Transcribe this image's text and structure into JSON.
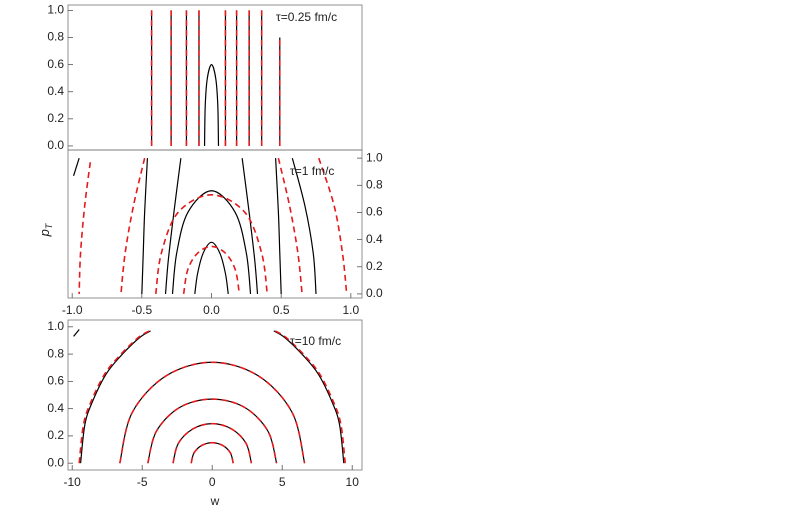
{
  "chart_data": [
    {
      "type": "contour",
      "annotation": "τ=0.25 fm/c",
      "xlim": [
        -1.03,
        1.08
      ],
      "ylim": [
        -0.03,
        1.04
      ],
      "yaxis": "left",
      "yticks": [
        {
          "value": 0,
          "label": "0.0"
        },
        {
          "value": 0.2,
          "label": "0.2"
        },
        {
          "value": 0.4,
          "label": "0.4"
        },
        {
          "value": 0.6,
          "label": "0.6"
        },
        {
          "value": 0.8,
          "label": "0.8"
        },
        {
          "value": 1,
          "label": "1.0"
        }
      ],
      "curves": [
        {
          "color": "#000000",
          "dash": false,
          "x": [
            -0.43,
            -0.43
          ],
          "y": [
            0,
            1
          ]
        },
        {
          "color": "#000000",
          "dash": false,
          "x": [
            -0.29,
            -0.29
          ],
          "y": [
            0,
            1
          ]
        },
        {
          "color": "#000000",
          "dash": false,
          "x": [
            -0.18,
            -0.18
          ],
          "y": [
            0,
            1
          ]
        },
        {
          "color": "#000000",
          "dash": false,
          "x": [
            -0.09,
            -0.09
          ],
          "y": [
            0,
            1
          ]
        },
        {
          "color": "#000000",
          "dash": false,
          "x": [
            -0.05,
            -0.045,
            -0.03,
            0,
            0.03,
            0.045,
            0.05
          ],
          "y": [
            0,
            0.3,
            0.5,
            0.6,
            0.5,
            0.3,
            0
          ]
        },
        {
          "color": "#000000",
          "dash": false,
          "x": [
            0.1,
            0.1
          ],
          "y": [
            0,
            1
          ]
        },
        {
          "color": "#000000",
          "dash": false,
          "x": [
            0.18,
            0.18
          ],
          "y": [
            0,
            1
          ]
        },
        {
          "color": "#000000",
          "dash": false,
          "x": [
            0.27,
            0.27
          ],
          "y": [
            0,
            1
          ]
        },
        {
          "color": "#000000",
          "dash": false,
          "x": [
            0.36,
            0.36
          ],
          "y": [
            0,
            1
          ]
        },
        {
          "color": "#000000",
          "dash": false,
          "x": [
            0.49,
            0.49
          ],
          "y": [
            0,
            0.8
          ]
        },
        {
          "color": "#e41a1c",
          "dash": true,
          "x": [
            -0.43,
            -0.43
          ],
          "y": [
            0,
            1
          ]
        },
        {
          "color": "#e41a1c",
          "dash": true,
          "x": [
            -0.29,
            -0.29
          ],
          "y": [
            0,
            1
          ]
        },
        {
          "color": "#e41a1c",
          "dash": true,
          "x": [
            -0.18,
            -0.18
          ],
          "y": [
            0,
            1
          ]
        },
        {
          "color": "#e41a1c",
          "dash": true,
          "x": [
            -0.09,
            -0.09
          ],
          "y": [
            0,
            1
          ]
        },
        {
          "color": "#e41a1c",
          "dash": true,
          "x": [
            0.1,
            0.1
          ],
          "y": [
            0,
            1
          ]
        },
        {
          "color": "#e41a1c",
          "dash": true,
          "x": [
            0.18,
            0.18
          ],
          "y": [
            0,
            1
          ]
        },
        {
          "color": "#e41a1c",
          "dash": true,
          "x": [
            0.27,
            0.27
          ],
          "y": [
            0,
            1
          ]
        },
        {
          "color": "#e41a1c",
          "dash": true,
          "x": [
            0.36,
            0.36
          ],
          "y": [
            0,
            1
          ]
        },
        {
          "color": "#e41a1c",
          "dash": true,
          "x": [
            0.49,
            0.49
          ],
          "y": [
            0,
            0.8
          ]
        }
      ]
    },
    {
      "type": "contour",
      "annotation": "τ=1 fm/c",
      "xlim": [
        -1.03,
        1.08
      ],
      "ylim": [
        -0.03,
        1.06
      ],
      "yaxis": "right",
      "ylabel": "p",
      "ylabel_subscript": "T",
      "xticks": [
        {
          "value": -1,
          "label": "-1.0"
        },
        {
          "value": -0.5,
          "label": "-0.5"
        },
        {
          "value": 0,
          "label": "0.0"
        },
        {
          "value": 0.5,
          "label": "0.5"
        },
        {
          "value": 1,
          "label": "1.0"
        }
      ],
      "yticks": [
        {
          "value": 0,
          "label": "0.0"
        },
        {
          "value": 0.2,
          "label": "0.2"
        },
        {
          "value": 0.4,
          "label": "0.4"
        },
        {
          "value": 0.6,
          "label": "0.6"
        },
        {
          "value": 0.8,
          "label": "0.8"
        },
        {
          "value": 1,
          "label": "1.0"
        }
      ],
      "curves": [
        {
          "color": "#000000",
          "dash": false,
          "x": [
            -0.12,
            -0.1,
            -0.06,
            0,
            0.06,
            0.1,
            0.12
          ],
          "y": [
            0,
            0.15,
            0.3,
            0.38,
            0.3,
            0.15,
            0
          ]
        },
        {
          "color": "#000000",
          "dash": false,
          "x": [
            -0.28,
            -0.25,
            -0.17,
            0,
            0.17,
            0.25,
            0.28
          ],
          "y": [
            0,
            0.3,
            0.6,
            0.76,
            0.6,
            0.3,
            0
          ]
        },
        {
          "color": "#000000",
          "dash": false,
          "x": [
            -0.22,
            -0.27,
            -0.31,
            -0.33
          ],
          "y": [
            1,
            0.6,
            0.25,
            0
          ]
        },
        {
          "color": "#000000",
          "dash": false,
          "x": [
            0.22,
            0.27,
            0.31,
            0.33
          ],
          "y": [
            1,
            0.6,
            0.25,
            0
          ]
        },
        {
          "color": "#000000",
          "dash": false,
          "x": [
            -0.46,
            -0.48,
            -0.49,
            -0.5
          ],
          "y": [
            1,
            0.6,
            0.3,
            0
          ]
        },
        {
          "color": "#000000",
          "dash": false,
          "x": [
            0.46,
            0.48,
            0.49,
            0.5
          ],
          "y": [
            1,
            0.6,
            0.3,
            0
          ]
        },
        {
          "color": "#000000",
          "dash": false,
          "x": [
            0.58,
            0.67,
            0.73,
            0.75
          ],
          "y": [
            1,
            0.65,
            0.3,
            0
          ]
        },
        {
          "color": "#000000",
          "dash": false,
          "x": [
            -0.99,
            -0.95
          ],
          "y": [
            0.87,
            1
          ]
        },
        {
          "color": "#e41a1c",
          "dash": true,
          "x": [
            -0.2,
            -0.17,
            -0.1,
            0,
            0.1,
            0.17,
            0.2
          ],
          "y": [
            0,
            0.18,
            0.3,
            0.35,
            0.3,
            0.18,
            0
          ]
        },
        {
          "color": "#e41a1c",
          "dash": true,
          "x": [
            -0.4,
            -0.36,
            -0.24,
            0,
            0.24,
            0.36,
            0.4
          ],
          "y": [
            0,
            0.3,
            0.6,
            0.73,
            0.6,
            0.3,
            0
          ]
        },
        {
          "color": "#e41a1c",
          "dash": true,
          "x": [
            -0.48,
            -0.56,
            -0.62,
            -0.65
          ],
          "y": [
            1,
            0.65,
            0.3,
            0
          ]
        },
        {
          "color": "#e41a1c",
          "dash": true,
          "x": [
            0.48,
            0.56,
            0.62,
            0.65
          ],
          "y": [
            1,
            0.65,
            0.3,
            0
          ]
        },
        {
          "color": "#e41a1c",
          "dash": true,
          "x": [
            -0.87,
            -0.91,
            -0.94,
            -0.95
          ],
          "y": [
            0.97,
            0.65,
            0.3,
            0
          ]
        },
        {
          "color": "#e41a1c",
          "dash": true,
          "x": [
            0.77,
            0.88,
            0.94,
            0.97
          ],
          "y": [
            1,
            0.65,
            0.3,
            0
          ]
        }
      ]
    },
    {
      "type": "contour",
      "annotation": "τ=10 fm/c",
      "xlim": [
        -10.3,
        10.7
      ],
      "ylim": [
        -0.05,
        1.05
      ],
      "yaxis": "left",
      "xlabel": "w",
      "xticks": [
        -10,
        -5,
        0,
        5,
        10
      ],
      "yticks": [
        {
          "value": 0,
          "label": "0.0"
        },
        {
          "value": 0.2,
          "label": "0.2"
        },
        {
          "value": 0.4,
          "label": "0.4"
        },
        {
          "value": 0.6,
          "label": "0.6"
        },
        {
          "value": 0.8,
          "label": "0.8"
        },
        {
          "value": 1,
          "label": "1.0"
        }
      ],
      "curves": [
        {
          "color": "#000000",
          "dash": false,
          "x": [
            -1.5,
            -1.3,
            -0.75,
            0,
            0.75,
            1.3,
            1.5
          ],
          "y": [
            0,
            0.075,
            0.13,
            0.15,
            0.13,
            0.075,
            0
          ]
        },
        {
          "color": "#000000",
          "dash": false,
          "x": [
            -2.8,
            -2.42,
            -1.4,
            0,
            1.4,
            2.42,
            2.8
          ],
          "y": [
            0,
            0.145,
            0.25,
            0.29,
            0.25,
            0.145,
            0
          ]
        },
        {
          "color": "#000000",
          "dash": false,
          "x": [
            -4.6,
            -3.98,
            -2.3,
            0,
            2.3,
            3.98,
            4.6
          ],
          "y": [
            0,
            0.235,
            0.41,
            0.47,
            0.41,
            0.235,
            0
          ]
        },
        {
          "color": "#000000",
          "dash": false,
          "x": [
            -6.6,
            -5.72,
            -3.3,
            0,
            3.3,
            5.72,
            6.6
          ],
          "y": [
            0,
            0.37,
            0.64,
            0.74,
            0.64,
            0.37,
            0
          ]
        },
        {
          "color": "#000000",
          "dash": false,
          "x": [
            -9.4,
            -9.1,
            -8.6,
            -7.6,
            -6.5,
            -5.2,
            -4.4
          ],
          "y": [
            0,
            0.28,
            0.44,
            0.65,
            0.79,
            0.92,
            0.97
          ]
        },
        {
          "color": "#000000",
          "dash": false,
          "x": [
            9.4,
            9.1,
            8.6,
            7.6,
            6.5,
            5.2,
            4.4
          ],
          "y": [
            0,
            0.28,
            0.44,
            0.65,
            0.79,
            0.92,
            0.97
          ]
        },
        {
          "color": "#000000",
          "dash": false,
          "x": [
            -9.9,
            -9.5
          ],
          "y": [
            0.93,
            0.98
          ]
        },
        {
          "color": "#e41a1c",
          "dash": true,
          "x": [
            -1.5,
            -1.3,
            -0.75,
            0,
            0.75,
            1.3,
            1.5
          ],
          "y": [
            0,
            0.075,
            0.13,
            0.15,
            0.13,
            0.075,
            0
          ]
        },
        {
          "color": "#e41a1c",
          "dash": true,
          "x": [
            -2.8,
            -2.42,
            -1.4,
            0,
            1.4,
            2.42,
            2.8
          ],
          "y": [
            0,
            0.145,
            0.25,
            0.29,
            0.25,
            0.145,
            0
          ]
        },
        {
          "color": "#e41a1c",
          "dash": true,
          "x": [
            -4.6,
            -3.98,
            -2.3,
            0,
            2.3,
            3.98,
            4.6
          ],
          "y": [
            0,
            0.235,
            0.41,
            0.47,
            0.41,
            0.235,
            0
          ]
        },
        {
          "color": "#e41a1c",
          "dash": true,
          "x": [
            -6.6,
            -5.72,
            -3.3,
            0,
            3.3,
            5.72,
            6.6
          ],
          "y": [
            0,
            0.37,
            0.64,
            0.74,
            0.64,
            0.37,
            0
          ]
        },
        {
          "color": "#e41a1c",
          "dash": true,
          "x": [
            -9.5,
            -9.2,
            -8.7,
            -7.7,
            -6.6,
            -5.3,
            -4.5
          ],
          "y": [
            0,
            0.28,
            0.44,
            0.65,
            0.79,
            0.92,
            0.97
          ]
        },
        {
          "color": "#e41a1c",
          "dash": true,
          "x": [
            9.5,
            9.2,
            8.7,
            7.7,
            6.6,
            5.3,
            4.5
          ],
          "y": [
            0,
            0.28,
            0.44,
            0.65,
            0.79,
            0.92,
            0.97
          ]
        }
      ]
    }
  ]
}
